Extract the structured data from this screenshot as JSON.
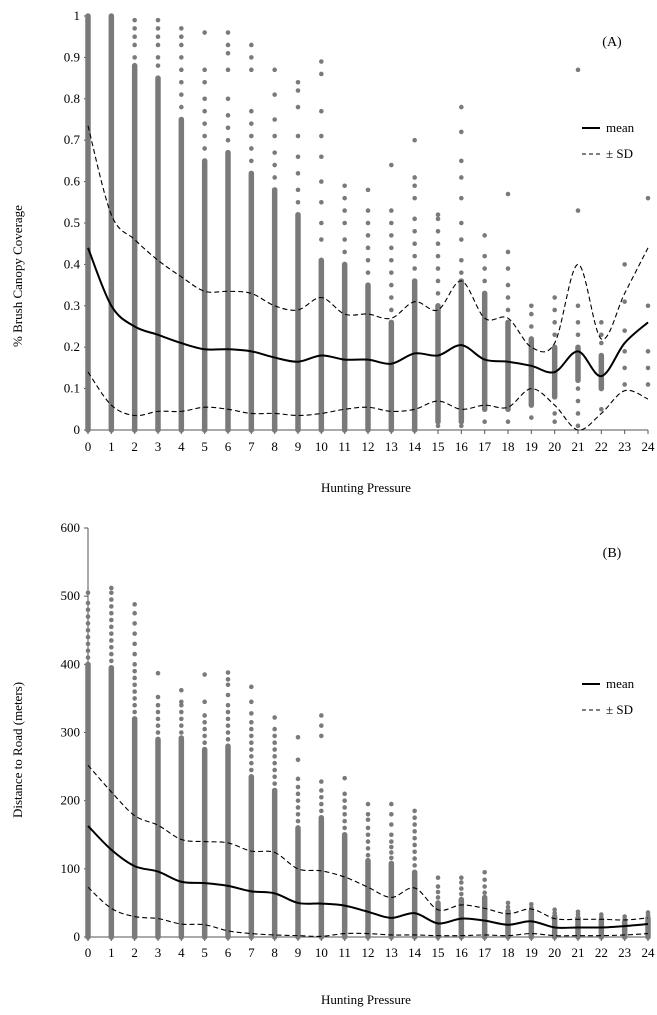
{
  "chart_data": [
    {
      "panel": "(A)",
      "type": "scatter",
      "xlabel": "Hunting Pressure",
      "ylabel": "% Brush Canopy Coverage",
      "xlim": [
        0,
        24
      ],
      "ylim": [
        0,
        1
      ],
      "x_ticks": [
        "0",
        "1",
        "2",
        "3",
        "4",
        "5",
        "6",
        "7",
        "8",
        "9",
        "10",
        "11",
        "12",
        "13",
        "14",
        "15",
        "16",
        "17",
        "18",
        "19",
        "20",
        "21",
        "22",
        "23",
        "24"
      ],
      "y_ticks": [
        "0",
        "0.1",
        "0.2",
        "0.3",
        "0.4",
        "0.5",
        "0.6",
        "0.7",
        "0.8",
        "0.9",
        "1"
      ],
      "grid": false,
      "legend_position": "right",
      "legend": [
        {
          "label": "mean",
          "style": "solid"
        },
        {
          "label": "± SD",
          "style": "dashed"
        }
      ],
      "colors": {
        "points": "#7a7a7a",
        "lines": "#000000"
      },
      "point_columns": [
        {
          "x": 0,
          "solid": [
            0,
            1.0
          ],
          "extra": []
        },
        {
          "x": 1,
          "solid": [
            0,
            1.0
          ],
          "extra": []
        },
        {
          "x": 2,
          "solid": [
            0,
            0.88
          ],
          "extra": [
            0.9,
            0.93,
            0.95,
            0.97,
            0.99
          ]
        },
        {
          "x": 3,
          "solid": [
            0,
            0.85
          ],
          "extra": [
            0.88,
            0.9,
            0.93,
            0.95,
            0.97,
            0.99
          ]
        },
        {
          "x": 4,
          "solid": [
            0,
            0.75
          ],
          "extra": [
            0.78,
            0.81,
            0.84,
            0.87,
            0.9,
            0.93,
            0.95,
            0.97
          ]
        },
        {
          "x": 5,
          "solid": [
            0,
            0.65
          ],
          "extra": [
            0.68,
            0.71,
            0.74,
            0.77,
            0.8,
            0.84,
            0.87,
            0.96
          ]
        },
        {
          "x": 6,
          "solid": [
            0,
            0.67
          ],
          "extra": [
            0.7,
            0.73,
            0.76,
            0.8,
            0.87,
            0.91,
            0.93,
            0.96
          ]
        },
        {
          "x": 7,
          "solid": [
            0,
            0.62
          ],
          "extra": [
            0.65,
            0.68,
            0.71,
            0.74,
            0.77,
            0.87,
            0.9,
            0.93
          ]
        },
        {
          "x": 8,
          "solid": [
            0,
            0.58
          ],
          "extra": [
            0.61,
            0.64,
            0.67,
            0.71,
            0.75,
            0.81,
            0.87
          ]
        },
        {
          "x": 9,
          "solid": [
            0,
            0.52
          ],
          "extra": [
            0.55,
            0.58,
            0.62,
            0.66,
            0.71,
            0.78,
            0.82,
            0.84
          ]
        },
        {
          "x": 10,
          "solid": [
            0,
            0.41
          ],
          "extra": [
            0.46,
            0.5,
            0.55,
            0.6,
            0.66,
            0.71,
            0.77,
            0.86,
            0.89
          ]
        },
        {
          "x": 11,
          "solid": [
            0,
            0.4
          ],
          "extra": [
            0.43,
            0.46,
            0.5,
            0.53,
            0.56,
            0.59
          ]
        },
        {
          "x": 12,
          "solid": [
            0,
            0.35
          ],
          "extra": [
            0.38,
            0.41,
            0.44,
            0.47,
            0.5,
            0.53,
            0.58
          ]
        },
        {
          "x": 13,
          "solid": [
            0,
            0.26
          ],
          "extra": [
            0.29,
            0.32,
            0.35,
            0.38,
            0.41,
            0.44,
            0.47,
            0.5,
            0.53,
            0.64
          ]
        },
        {
          "x": 14,
          "solid": [
            0,
            0.36
          ],
          "extra": [
            0.39,
            0.42,
            0.45,
            0.48,
            0.51,
            0.56,
            0.59,
            0.61,
            0.7
          ]
        },
        {
          "x": 15,
          "solid": [
            0.02,
            0.3
          ],
          "extra": [
            0.01,
            0.33,
            0.36,
            0.39,
            0.42,
            0.45,
            0.48,
            0.51,
            0.52
          ]
        },
        {
          "x": 16,
          "solid": [
            0.02,
            0.36
          ],
          "extra": [
            0.01,
            0.38,
            0.41,
            0.46,
            0.5,
            0.56,
            0.61,
            0.65,
            0.72,
            0.78
          ]
        },
        {
          "x": 17,
          "solid": [
            0.05,
            0.33
          ],
          "extra": [
            0.02,
            0.36,
            0.39,
            0.42,
            0.47
          ]
        },
        {
          "x": 18,
          "solid": [
            0.05,
            0.26
          ],
          "extra": [
            0.02,
            0.29,
            0.32,
            0.35,
            0.39,
            0.43,
            0.57
          ]
        },
        {
          "x": 19,
          "solid": [
            0.06,
            0.22
          ],
          "extra": [
            0.03,
            0.25,
            0.28,
            0.3
          ]
        },
        {
          "x": 20,
          "solid": [
            0.08,
            0.2
          ],
          "extra": [
            0.02,
            0.04,
            0.23,
            0.26,
            0.29,
            0.32
          ]
        },
        {
          "x": 21,
          "solid": [
            0.12,
            0.2
          ],
          "extra": [
            0.01,
            0.04,
            0.07,
            0.1,
            0.23,
            0.26,
            0.3,
            0.53,
            0.87
          ]
        },
        {
          "x": 22,
          "solid": [
            0.1,
            0.18
          ],
          "extra": [
            0.05,
            0.21,
            0.23,
            0.26
          ]
        },
        {
          "x": 23,
          "solid": [],
          "extra": [
            0.11,
            0.15,
            0.19,
            0.24,
            0.31,
            0.4
          ]
        },
        {
          "x": 24,
          "solid": [],
          "extra": [
            0.11,
            0.15,
            0.19,
            0.3,
            0.56
          ]
        }
      ],
      "series": [
        {
          "name": "mean",
          "style": "solid",
          "values": [
            0.44,
            0.3,
            0.25,
            0.23,
            0.21,
            0.195,
            0.195,
            0.19,
            0.175,
            0.165,
            0.18,
            0.17,
            0.17,
            0.16,
            0.185,
            0.18,
            0.205,
            0.17,
            0.165,
            0.155,
            0.14,
            0.19,
            0.13,
            0.21,
            0.26
          ]
        },
        {
          "name": "± SD",
          "style": "dashed",
          "values": [
            0.735,
            0.52,
            0.46,
            0.41,
            0.37,
            0.335,
            0.335,
            0.33,
            0.3,
            0.29,
            0.32,
            0.28,
            0.28,
            0.27,
            0.31,
            0.29,
            0.36,
            0.27,
            0.27,
            0.2,
            0.21,
            0.4,
            0.22,
            0.33,
            0.44
          ]
        },
        {
          "name": "± SD",
          "style": "dashed",
          "values": [
            0.14,
            0.06,
            0.035,
            0.045,
            0.045,
            0.055,
            0.05,
            0.04,
            0.04,
            0.035,
            0.04,
            0.05,
            0.055,
            0.045,
            0.05,
            0.07,
            0.05,
            0.06,
            0.055,
            0.1,
            0.06,
            0.0,
            0.04,
            0.095,
            0.075
          ]
        }
      ]
    },
    {
      "panel": "(B)",
      "type": "scatter",
      "xlabel": "Hunting Pressure",
      "ylabel": "Distance to Road (meters)",
      "xlim": [
        0,
        24
      ],
      "ylim": [
        0,
        600
      ],
      "x_ticks": [
        "0",
        "1",
        "2",
        "3",
        "4",
        "5",
        "6",
        "7",
        "8",
        "9",
        "10",
        "11",
        "12",
        "13",
        "14",
        "15",
        "16",
        "17",
        "18",
        "19",
        "20",
        "21",
        "22",
        "23",
        "24"
      ],
      "y_ticks": [
        "0",
        "100",
        "200",
        "300",
        "400",
        "500",
        "600"
      ],
      "grid": false,
      "legend_position": "right",
      "legend": [
        {
          "label": "mean",
          "style": "solid"
        },
        {
          "label": "± SD",
          "style": "dashed"
        }
      ],
      "colors": {
        "points": "#7a7a7a",
        "lines": "#000000"
      },
      "point_columns": [
        {
          "x": 0,
          "solid": [
            0,
            400
          ],
          "extra": [
            410,
            420,
            430,
            440,
            450,
            460,
            470,
            480,
            490,
            505
          ]
        },
        {
          "x": 1,
          "solid": [
            0,
            395
          ],
          "extra": [
            405,
            415,
            425,
            435,
            445,
            455,
            465,
            475,
            485,
            495,
            505,
            512
          ]
        },
        {
          "x": 2,
          "solid": [
            0,
            320
          ],
          "extra": [
            330,
            340,
            350,
            360,
            370,
            380,
            390,
            400,
            415,
            430,
            445,
            460,
            475,
            488
          ]
        },
        {
          "x": 3,
          "solid": [
            0,
            290
          ],
          "extra": [
            300,
            310,
            320,
            330,
            340,
            352,
            387
          ]
        },
        {
          "x": 4,
          "solid": [
            0,
            292
          ],
          "extra": [
            300,
            310,
            320,
            330,
            340,
            345,
            362
          ]
        },
        {
          "x": 5,
          "solid": [
            0,
            275
          ],
          "extra": [
            285,
            295,
            305,
            315,
            325,
            345,
            385
          ]
        },
        {
          "x": 6,
          "solid": [
            0,
            280
          ],
          "extra": [
            290,
            300,
            310,
            320,
            330,
            340,
            355,
            370,
            378,
            388
          ]
        },
        {
          "x": 7,
          "solid": [
            0,
            235
          ],
          "extra": [
            245,
            255,
            265,
            275,
            285,
            295,
            305,
            315,
            328,
            345,
            367
          ]
        },
        {
          "x": 8,
          "solid": [
            0,
            215
          ],
          "extra": [
            225,
            235,
            245,
            255,
            265,
            275,
            285,
            295,
            305,
            322
          ]
        },
        {
          "x": 9,
          "solid": [
            0,
            160
          ],
          "extra": [
            170,
            180,
            190,
            200,
            210,
            220,
            232,
            260,
            293
          ]
        },
        {
          "x": 10,
          "solid": [
            0,
            175
          ],
          "extra": [
            185,
            195,
            205,
            215,
            228,
            295,
            310,
            325
          ]
        },
        {
          "x": 11,
          "solid": [
            0,
            150
          ],
          "extra": [
            160,
            170,
            180,
            190,
            200,
            210,
            233
          ]
        },
        {
          "x": 12,
          "solid": [
            0,
            112
          ],
          "extra": [
            120,
            130,
            140,
            150,
            160,
            172,
            180,
            195
          ]
        },
        {
          "x": 13,
          "solid": [
            0,
            108
          ],
          "extra": [
            116,
            124,
            132,
            140,
            150,
            165,
            180,
            195
          ]
        },
        {
          "x": 14,
          "solid": [
            0,
            95
          ],
          "extra": [
            105,
            115,
            125,
            135,
            145,
            155,
            165,
            175,
            185
          ]
        },
        {
          "x": 15,
          "solid": [
            0,
            50
          ],
          "extra": [
            58,
            66,
            74,
            87
          ]
        },
        {
          "x": 16,
          "solid": [
            0,
            55
          ],
          "extra": [
            63,
            71,
            80,
            87
          ]
        },
        {
          "x": 17,
          "solid": [
            0,
            58
          ],
          "extra": [
            65,
            74,
            84,
            95
          ]
        },
        {
          "x": 18,
          "solid": [
            0,
            38
          ],
          "extra": [
            44,
            50
          ]
        },
        {
          "x": 19,
          "solid": [
            0,
            38
          ],
          "extra": [
            43,
            48
          ]
        },
        {
          "x": 20,
          "solid": [
            0,
            30
          ],
          "extra": [
            35,
            40
          ]
        },
        {
          "x": 21,
          "solid": [
            0,
            28
          ],
          "extra": [
            33,
            37
          ]
        },
        {
          "x": 22,
          "solid": [
            0,
            25
          ],
          "extra": [
            29,
            33
          ]
        },
        {
          "x": 23,
          "solid": [
            0,
            22
          ],
          "extra": [
            26,
            30
          ]
        },
        {
          "x": 24,
          "solid": [
            0,
            28
          ],
          "extra": [
            32,
            36
          ]
        }
      ],
      "series": [
        {
          "name": "mean",
          "style": "solid",
          "values": [
            163,
            128,
            104,
            96,
            81,
            79,
            75,
            67,
            64,
            50,
            49,
            46,
            37,
            28,
            35,
            20,
            27,
            24,
            18,
            23,
            14,
            14,
            14,
            16,
            19
          ]
        },
        {
          "name": "± SD",
          "style": "dashed",
          "values": [
            252,
            213,
            178,
            164,
            143,
            140,
            138,
            126,
            124,
            100,
            97,
            88,
            73,
            58,
            72,
            40,
            47,
            42,
            34,
            41,
            27,
            26,
            26,
            25,
            28
          ]
        },
        {
          "name": "± SD",
          "style": "dashed",
          "values": [
            73,
            42,
            30,
            27,
            19,
            18,
            9,
            5,
            3,
            2,
            1,
            5,
            5,
            3,
            3,
            2,
            2,
            3,
            2,
            5,
            2,
            2,
            2,
            3,
            5
          ]
        }
      ]
    }
  ]
}
